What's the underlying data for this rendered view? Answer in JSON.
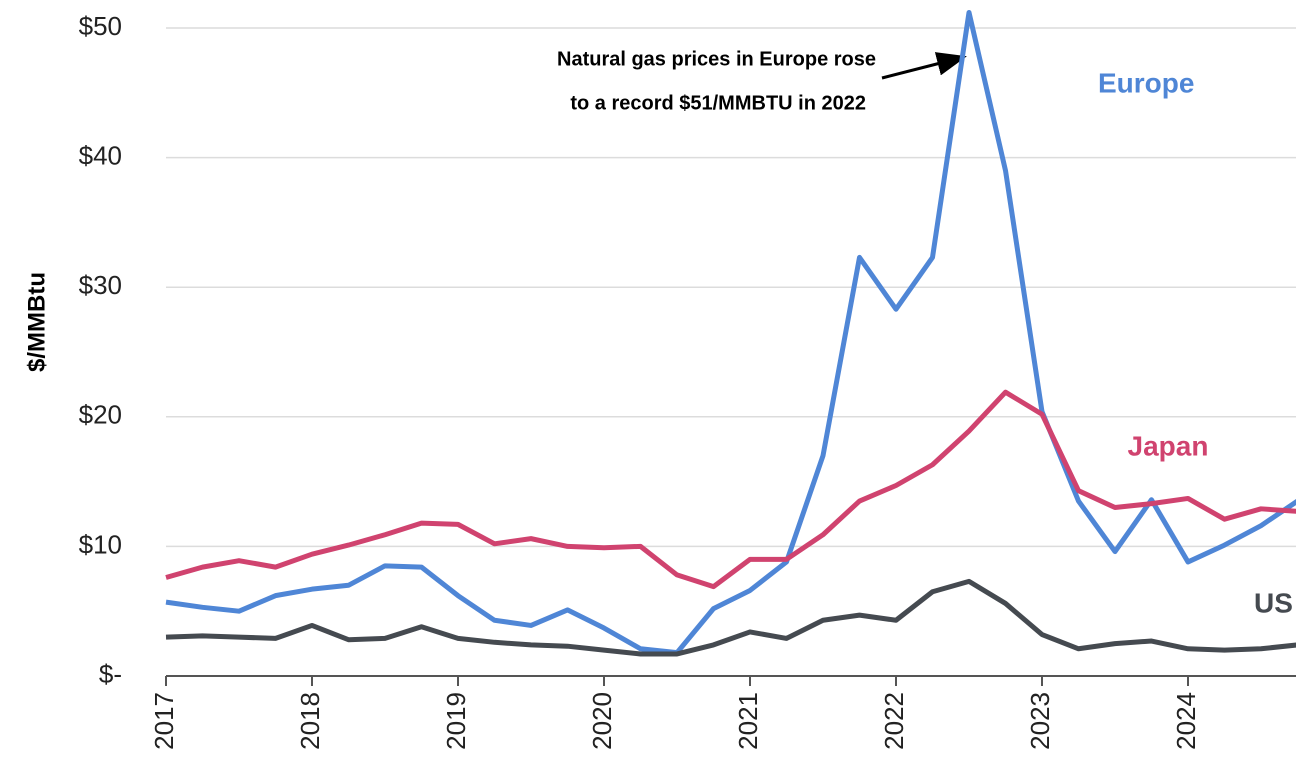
{
  "chart_data": {
    "type": "line",
    "y_label": "$/MMBtu",
    "annotation": [
      "Natural gas prices in Europe rose",
      "to a record $51/MMBTU in 2022"
    ],
    "categories": [
      "2017",
      null,
      null,
      null,
      "2018",
      null,
      null,
      null,
      "2019",
      null,
      null,
      null,
      "2020",
      null,
      null,
      null,
      "2021",
      null,
      null,
      null,
      "2022",
      null,
      null,
      null,
      "2023",
      null,
      null,
      null,
      "2024",
      null,
      null,
      null
    ],
    "series": [
      {
        "name": "Europe",
        "color": "#4f86d6",
        "values": [
          5.7,
          5.3,
          5.0,
          6.2,
          6.7,
          7.0,
          8.5,
          8.4,
          6.2,
          4.3,
          3.9,
          5.1,
          3.7,
          2.1,
          1.8,
          5.2,
          6.6,
          8.8,
          17.0,
          32.3,
          28.3,
          32.3,
          51.2,
          39.0,
          20.4,
          13.5,
          9.6,
          13.6,
          8.8,
          10.1,
          11.6,
          13.5
        ]
      },
      {
        "name": "Japan",
        "color": "#d0436f",
        "values": [
          7.6,
          8.4,
          8.9,
          8.4,
          9.4,
          10.1,
          10.9,
          11.8,
          11.7,
          10.2,
          10.6,
          10.0,
          9.9,
          10.0,
          7.8,
          6.9,
          9.0,
          9.0,
          10.9,
          13.5,
          14.7,
          16.3,
          18.9,
          21.9,
          20.2,
          14.3,
          13.0,
          13.3,
          13.7,
          12.1,
          12.9,
          12.7
        ]
      },
      {
        "name": "US",
        "color": "#454a50",
        "values": [
          3.0,
          3.1,
          3.0,
          2.9,
          3.9,
          2.8,
          2.9,
          3.8,
          2.9,
          2.6,
          2.4,
          2.3,
          2.0,
          1.7,
          1.7,
          2.4,
          3.4,
          2.9,
          4.3,
          4.7,
          4.3,
          6.5,
          7.3,
          5.6,
          3.2,
          2.1,
          2.5,
          2.7,
          2.1,
          2.0,
          2.1,
          2.4
        ]
      }
    ],
    "ylim": [
      0,
      50
    ],
    "yticks": [
      {
        "value": 0,
        "label": "$-"
      },
      {
        "value": 10,
        "label": "$10"
      },
      {
        "value": 20,
        "label": "$20"
      },
      {
        "value": 30,
        "label": "$30"
      },
      {
        "value": 40,
        "label": "$40"
      },
      {
        "value": 50,
        "label": "$50"
      }
    ],
    "grid": true
  }
}
